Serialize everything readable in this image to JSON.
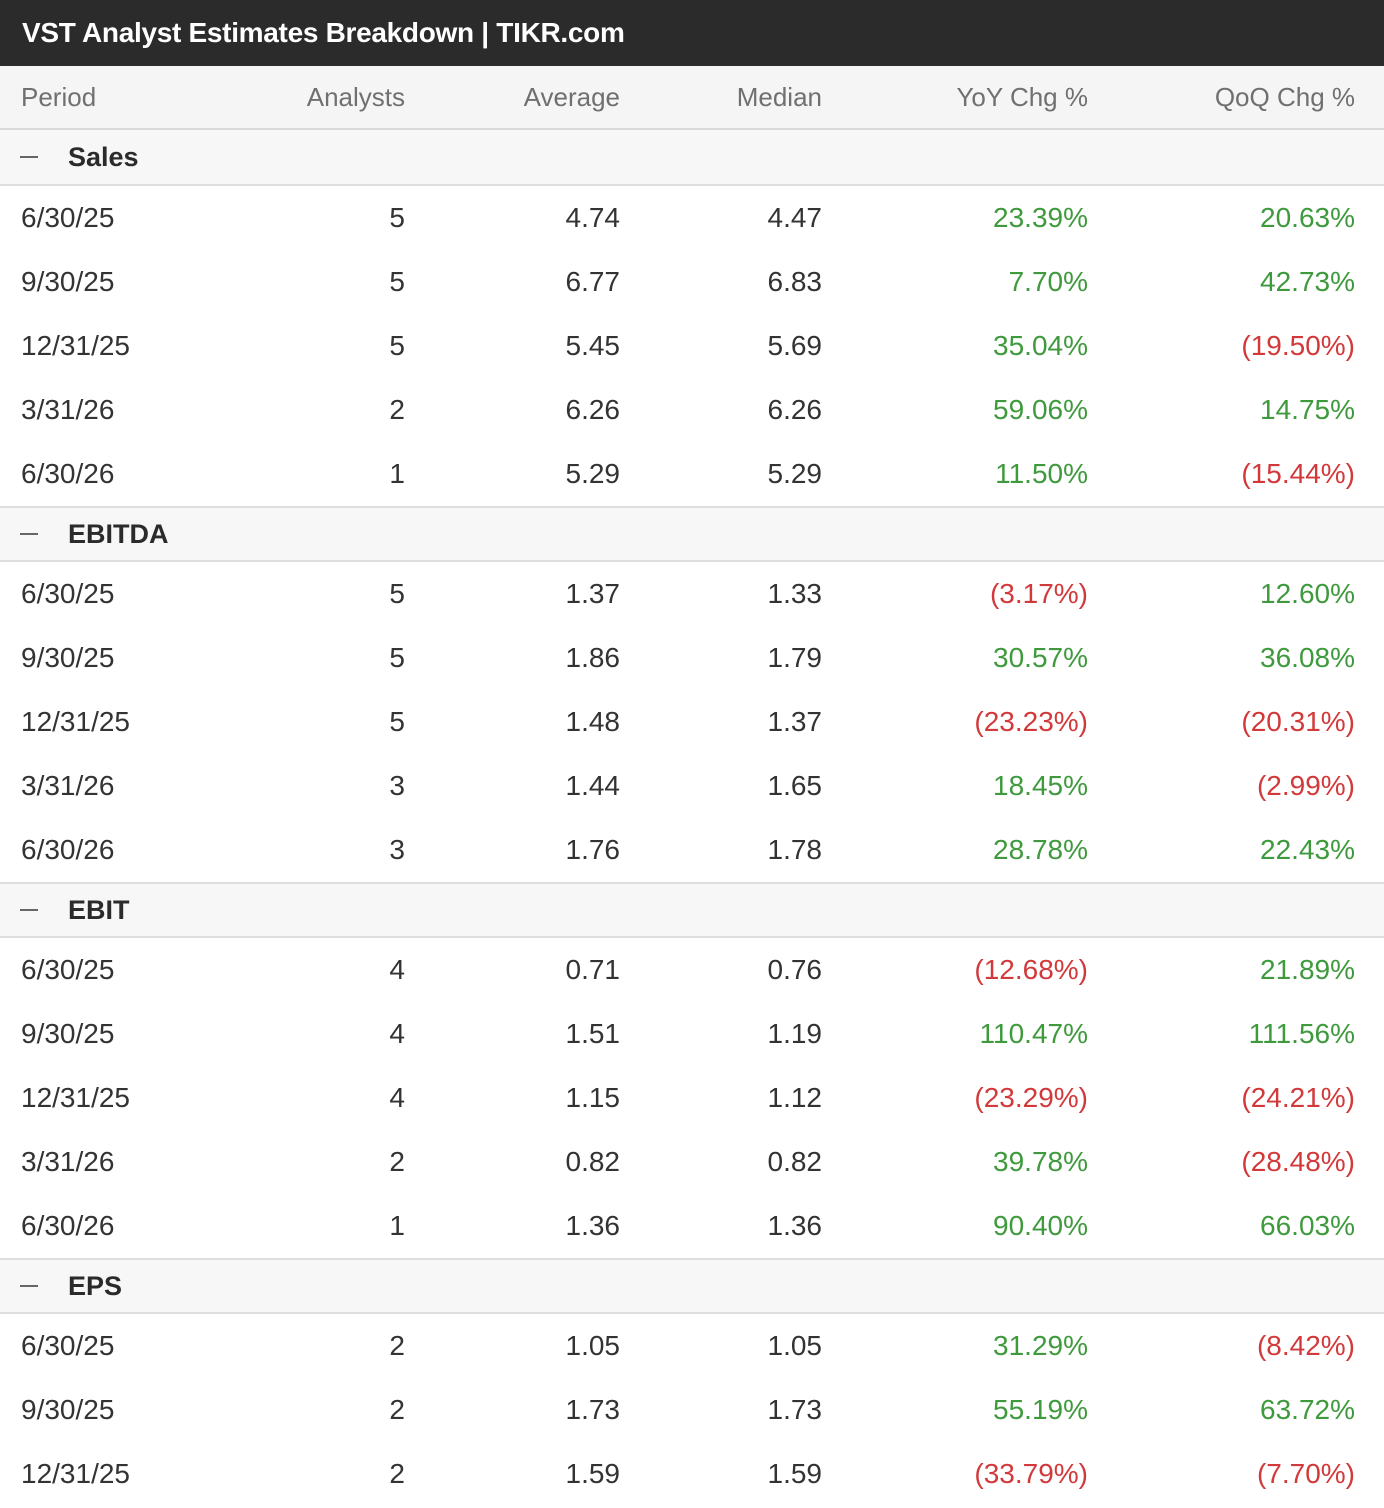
{
  "title": "VST Analyst Estimates Breakdown | TIKR.com",
  "columns": [
    "Period",
    "Analysts",
    "Average",
    "Median",
    "YoY Chg %",
    "QoQ Chg %"
  ],
  "colors": {
    "positive": "#3e9a3c",
    "negative": "#d2393b",
    "title_bg": "#2b2b2b"
  },
  "sections": [
    {
      "label": "Sales",
      "rows": [
        {
          "period": "6/30/25",
          "analysts": "5",
          "average": "4.74",
          "median": "4.47",
          "yoy": "23.39%",
          "qoq": "20.63%"
        },
        {
          "period": "9/30/25",
          "analysts": "5",
          "average": "6.77",
          "median": "6.83",
          "yoy": "7.70%",
          "qoq": "42.73%"
        },
        {
          "period": "12/31/25",
          "analysts": "5",
          "average": "5.45",
          "median": "5.69",
          "yoy": "35.04%",
          "qoq": "(19.50%)"
        },
        {
          "period": "3/31/26",
          "analysts": "2",
          "average": "6.26",
          "median": "6.26",
          "yoy": "59.06%",
          "qoq": "14.75%"
        },
        {
          "period": "6/30/26",
          "analysts": "1",
          "average": "5.29",
          "median": "5.29",
          "yoy": "11.50%",
          "qoq": "(15.44%)"
        }
      ]
    },
    {
      "label": "EBITDA",
      "rows": [
        {
          "period": "6/30/25",
          "analysts": "5",
          "average": "1.37",
          "median": "1.33",
          "yoy": "(3.17%)",
          "qoq": "12.60%"
        },
        {
          "period": "9/30/25",
          "analysts": "5",
          "average": "1.86",
          "median": "1.79",
          "yoy": "30.57%",
          "qoq": "36.08%"
        },
        {
          "period": "12/31/25",
          "analysts": "5",
          "average": "1.48",
          "median": "1.37",
          "yoy": "(23.23%)",
          "qoq": "(20.31%)"
        },
        {
          "period": "3/31/26",
          "analysts": "3",
          "average": "1.44",
          "median": "1.65",
          "yoy": "18.45%",
          "qoq": "(2.99%)"
        },
        {
          "period": "6/30/26",
          "analysts": "3",
          "average": "1.76",
          "median": "1.78",
          "yoy": "28.78%",
          "qoq": "22.43%"
        }
      ]
    },
    {
      "label": "EBIT",
      "rows": [
        {
          "period": "6/30/25",
          "analysts": "4",
          "average": "0.71",
          "median": "0.76",
          "yoy": "(12.68%)",
          "qoq": "21.89%"
        },
        {
          "period": "9/30/25",
          "analysts": "4",
          "average": "1.51",
          "median": "1.19",
          "yoy": "110.47%",
          "qoq": "111.56%"
        },
        {
          "period": "12/31/25",
          "analysts": "4",
          "average": "1.15",
          "median": "1.12",
          "yoy": "(23.29%)",
          "qoq": "(24.21%)"
        },
        {
          "period": "3/31/26",
          "analysts": "2",
          "average": "0.82",
          "median": "0.82",
          "yoy": "39.78%",
          "qoq": "(28.48%)"
        },
        {
          "period": "6/30/26",
          "analysts": "1",
          "average": "1.36",
          "median": "1.36",
          "yoy": "90.40%",
          "qoq": "66.03%"
        }
      ]
    },
    {
      "label": "EPS",
      "rows": [
        {
          "period": "6/30/25",
          "analysts": "2",
          "average": "1.05",
          "median": "1.05",
          "yoy": "31.29%",
          "qoq": "(8.42%)"
        },
        {
          "period": "9/30/25",
          "analysts": "2",
          "average": "1.73",
          "median": "1.73",
          "yoy": "55.19%",
          "qoq": "63.72%"
        },
        {
          "period": "12/31/25",
          "analysts": "2",
          "average": "1.59",
          "median": "1.59",
          "yoy": "(33.79%)",
          "qoq": "(7.70%)"
        }
      ]
    }
  ]
}
